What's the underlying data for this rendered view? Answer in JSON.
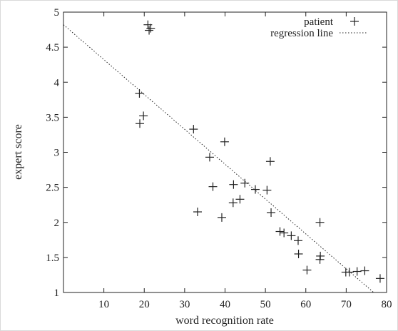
{
  "chart_data": {
    "type": "scatter",
    "xlabel": "word recognition rate",
    "ylabel": "expert score",
    "xlim": [
      0,
      80
    ],
    "ylim": [
      1,
      5
    ],
    "xticks": [
      10,
      20,
      30,
      40,
      50,
      60,
      70,
      80
    ],
    "yticks": [
      1,
      1.5,
      2,
      2.5,
      3,
      3.5,
      4,
      4.5,
      5
    ],
    "ytick_labels": [
      "1",
      "1.5",
      "2",
      "2.5",
      "3",
      "3.5",
      "4",
      "4.5",
      "5"
    ],
    "grid": false,
    "legend_position": "top-right",
    "series": [
      {
        "name": "patient",
        "marker": "plus",
        "points": [
          [
            20.9,
            4.82
          ],
          [
            21.2,
            4.74
          ],
          [
            21.6,
            4.77
          ],
          [
            18.8,
            3.84
          ],
          [
            19.8,
            3.52
          ],
          [
            18.9,
            3.41
          ],
          [
            32.2,
            3.33
          ],
          [
            39.9,
            3.15
          ],
          [
            36.2,
            2.93
          ],
          [
            51.2,
            2.87
          ],
          [
            44.9,
            2.56
          ],
          [
            42.1,
            2.54
          ],
          [
            37.0,
            2.51
          ],
          [
            47.5,
            2.47
          ],
          [
            50.4,
            2.46
          ],
          [
            43.7,
            2.33
          ],
          [
            42.0,
            2.28
          ],
          [
            33.2,
            2.15
          ],
          [
            51.4,
            2.14
          ],
          [
            39.2,
            2.07
          ],
          [
            63.5,
            2.0
          ],
          [
            53.6,
            1.87
          ],
          [
            54.6,
            1.85
          ],
          [
            56.4,
            1.81
          ],
          [
            58.1,
            1.74
          ],
          [
            58.2,
            1.55
          ],
          [
            63.6,
            1.52
          ],
          [
            63.5,
            1.47
          ],
          [
            60.3,
            1.32
          ],
          [
            69.9,
            1.29
          ],
          [
            70.8,
            1.29
          ],
          [
            72.7,
            1.3
          ],
          [
            74.6,
            1.31
          ],
          [
            78.4,
            1.2
          ]
        ]
      },
      {
        "name": "regression line",
        "type": "line",
        "style": "dotted",
        "points": [
          [
            0,
            4.82
          ],
          [
            76.8,
            1.0
          ]
        ]
      }
    ]
  }
}
